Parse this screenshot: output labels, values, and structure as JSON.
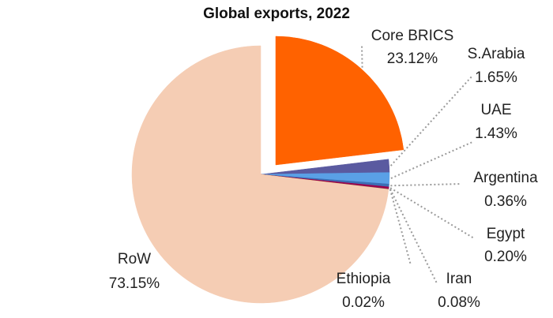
{
  "chart_data": {
    "type": "pie",
    "title": "Global exports, 2022",
    "exploded_slice": "Core BRICS",
    "slices": [
      {
        "name": "Core BRICS",
        "value": 23.12,
        "label": "23.12%",
        "color": "#ff6200"
      },
      {
        "name": "S.Arabia",
        "value": 1.65,
        "label": "1.65%",
        "color": "#5a5aa0"
      },
      {
        "name": "UAE",
        "value": 1.43,
        "label": "1.43%",
        "color": "#5aa0e6"
      },
      {
        "name": "Argentina",
        "value": 0.36,
        "label": "0.36%",
        "color": "#3c6eb4"
      },
      {
        "name": "Egypt",
        "value": 0.2,
        "label": "0.20%",
        "color": "#a0004b"
      },
      {
        "name": "Iran",
        "value": 0.08,
        "label": "0.08%",
        "color": "#7a1e5a"
      },
      {
        "name": "Ethiopia",
        "value": 0.02,
        "label": "0.02%",
        "color": "#d2781e"
      },
      {
        "name": "RoW",
        "value": 73.15,
        "label": "73.15%",
        "color": "#f5cdb4"
      }
    ]
  }
}
